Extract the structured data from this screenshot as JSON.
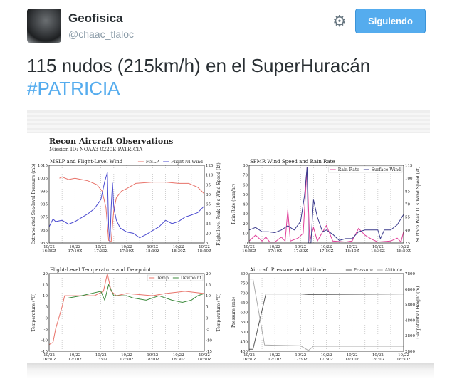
{
  "header": {
    "display_name": "Geofisica",
    "handle": "@chaac_tlaloc",
    "settings_icon": "gear-icon",
    "follow_button": "Siguiendo",
    "accent": "#55acee"
  },
  "tweet": {
    "text": "115 nudos (215km/h) en el SuperHuracán",
    "hashtag": "#PATRICIA"
  },
  "figure": {
    "title": "Recon Aircraft Observations",
    "subtitle": "Mission ID: NOAA3 0220E PATRICIA"
  },
  "chart_data": [
    {
      "type": "line",
      "title": "MSLP and Flight-Level Wind",
      "xlabel": "",
      "x_ticks": [
        "10/22\n16:50Z",
        "10/22\n17:10Z",
        "10/22\n17:30Z",
        "10/22\n17:50Z",
        "10/22\n18:10Z",
        "10/22\n18:30Z",
        "10/22\n18:50Z"
      ],
      "xlim": [
        "16:50",
        "18:50"
      ],
      "ylabel": "Extrapolated Sea-level Pressure (mb)",
      "ylim": [
        955,
        1015
      ],
      "y_ticks": [
        955,
        965,
        975,
        985,
        995,
        1005,
        1015
      ],
      "y2label": "Flight-level Peak 10 s Wind Speed (kt)",
      "y2lim": [
        5,
        125
      ],
      "y2_ticks": [
        5,
        20,
        35,
        50,
        65,
        80,
        95,
        110,
        125
      ],
      "legend": "top-right",
      "series": [
        {
          "name": "MSLP",
          "axis": "left",
          "color": "#e8736a",
          "points": [
            [
              "16:58",
              1005
            ],
            [
              "17:00",
              1006
            ],
            [
              "17:05",
              1004
            ],
            [
              "17:10",
              1005
            ],
            [
              "17:15",
              1004
            ],
            [
              "17:20",
              1003
            ],
            [
              "17:27",
              1000
            ],
            [
              "17:31",
              995
            ],
            [
              "17:34",
              982
            ],
            [
              "17:36",
              957
            ],
            [
              "17:38",
              956
            ],
            [
              "17:40",
              980
            ],
            [
              "17:42",
              990
            ],
            [
              "17:46",
              995
            ],
            [
              "17:50",
              997
            ],
            [
              "17:57",
              1001
            ],
            [
              "18:10",
              1002
            ],
            [
              "18:20",
              1002
            ],
            [
              "18:30",
              1001
            ],
            [
              "18:38",
              1001
            ],
            [
              "18:45",
              998
            ],
            [
              "18:50",
              993
            ]
          ]
        },
        {
          "name": "Flight lvl Wind",
          "axis": "right",
          "color": "#4a4ad0",
          "points": [
            [
              "16:50",
              30
            ],
            [
              "16:53",
              42
            ],
            [
              "16:55",
              38
            ],
            [
              "17:00",
              40
            ],
            [
              "17:05",
              34
            ],
            [
              "17:10",
              38
            ],
            [
              "17:15",
              44
            ],
            [
              "17:20",
              50
            ],
            [
              "17:25",
              58
            ],
            [
              "17:30",
              72
            ],
            [
              "17:33",
              100
            ],
            [
              "17:35",
              114
            ],
            [
              "17:36",
              30
            ],
            [
              "17:37",
              5
            ],
            [
              "17:38",
              60
            ],
            [
              "17:39",
              98
            ],
            [
              "17:40",
              60
            ],
            [
              "17:42",
              40
            ],
            [
              "17:45",
              28
            ],
            [
              "17:50",
              22
            ],
            [
              "17:55",
              20
            ],
            [
              "18:00",
              13
            ],
            [
              "18:05",
              18
            ],
            [
              "18:10",
              24
            ],
            [
              "18:15",
              30
            ],
            [
              "18:20",
              40
            ],
            [
              "18:25",
              35
            ],
            [
              "18:30",
              38
            ],
            [
              "18:35",
              45
            ],
            [
              "18:40",
              48
            ],
            [
              "18:45",
              52
            ],
            [
              "18:50",
              62
            ]
          ]
        }
      ]
    },
    {
      "type": "line",
      "title": "SFMR Wind Speed and Rain Rate",
      "x_ticks": [
        "10/22\n16:50Z",
        "10/22\n17:10Z",
        "10/22\n17:30Z",
        "10/22\n17:50Z",
        "10/22\n18:10Z",
        "10/22\n18:30Z",
        "10/22\n18:50Z"
      ],
      "xlim": [
        "16:50",
        "18:50"
      ],
      "ylabel": "Rain Rate (mm/hr)",
      "ylim": [
        0,
        80
      ],
      "y_ticks": [
        0,
        10,
        20,
        30,
        40,
        50,
        60,
        70,
        80
      ],
      "y2label": "Surface Peak 10 s Wind Speed (kt)",
      "y2lim": [
        25,
        115
      ],
      "y2_ticks": [
        25,
        40,
        55,
        70,
        85,
        100,
        115
      ],
      "legend": "top-right",
      "series": [
        {
          "name": "Rain Rate",
          "axis": "left",
          "color": "#e0409a",
          "points": [
            [
              "16:50",
              2
            ],
            [
              "16:55",
              8
            ],
            [
              "17:00",
              2
            ],
            [
              "17:03",
              6
            ],
            [
              "17:06",
              1
            ],
            [
              "17:10",
              1
            ],
            [
              "17:15",
              6
            ],
            [
              "17:18",
              2
            ],
            [
              "17:20",
              34
            ],
            [
              "17:22",
              2
            ],
            [
              "17:28",
              5
            ],
            [
              "17:32",
              10
            ],
            [
              "17:35",
              78
            ],
            [
              "17:37",
              2
            ],
            [
              "17:40",
              16
            ],
            [
              "17:43",
              2
            ],
            [
              "17:50",
              18
            ],
            [
              "17:55",
              2
            ],
            [
              "18:05",
              1
            ],
            [
              "18:10",
              2
            ],
            [
              "18:15",
              15
            ],
            [
              "18:20",
              8
            ],
            [
              "18:25",
              4
            ],
            [
              "18:30",
              1
            ],
            [
              "18:40",
              2
            ],
            [
              "18:45",
              5
            ],
            [
              "18:48",
              1
            ],
            [
              "18:50",
              12
            ]
          ]
        },
        {
          "name": "Surface Wind",
          "axis": "right",
          "color": "#3a3a8c",
          "points": [
            [
              "16:50",
              40
            ],
            [
              "16:55",
              43
            ],
            [
              "17:00",
              38
            ],
            [
              "17:05",
              38
            ],
            [
              "17:10",
              37
            ],
            [
              "17:15",
              40
            ],
            [
              "17:20",
              45
            ],
            [
              "17:25",
              40
            ],
            [
              "17:30",
              50
            ],
            [
              "17:33",
              80
            ],
            [
              "17:35",
              113
            ],
            [
              "17:36",
              25
            ],
            [
              "17:38",
              25
            ],
            [
              "17:40",
              75
            ],
            [
              "17:43",
              55
            ],
            [
              "17:47",
              38
            ],
            [
              "17:50",
              40
            ],
            [
              "17:55",
              35
            ],
            [
              "18:00",
              28
            ],
            [
              "18:05",
              30
            ],
            [
              "18:10",
              30
            ],
            [
              "18:15",
              38
            ],
            [
              "18:20",
              40
            ],
            [
              "18:30",
              40
            ],
            [
              "18:32",
              30
            ],
            [
              "18:35",
              40
            ],
            [
              "18:40",
              40
            ],
            [
              "18:45",
              46
            ],
            [
              "18:50",
              58
            ]
          ]
        }
      ]
    },
    {
      "type": "line",
      "title": "Flight-Level Temperature and Dewpoint",
      "x_ticks": [
        "10/22\n16:50Z",
        "10/22\n17:10Z",
        "10/22\n17:30Z",
        "10/22\n17:50Z",
        "10/22\n18:10Z",
        "10/22\n18:30Z",
        "10/22\n18:50Z"
      ],
      "xlim": [
        "16:50",
        "18:50"
      ],
      "ylabel": "Temperature (°C)",
      "ylim": [
        -15,
        20
      ],
      "y_ticks": [
        -15,
        -10,
        -5,
        0,
        5,
        10,
        15,
        20
      ],
      "y2label": "Temperature (°C)",
      "y2lim": [
        -15,
        20
      ],
      "y2_ticks": [
        -15,
        -10,
        -5,
        0,
        5,
        10,
        15,
        20
      ],
      "legend": "top-right",
      "series": [
        {
          "name": "Temp",
          "axis": "left",
          "color": "#e8736a",
          "points": [
            [
              "16:50",
              -12
            ],
            [
              "16:53",
              -11
            ],
            [
              "16:55",
              -5
            ],
            [
              "17:00",
              5
            ],
            [
              "17:02",
              10
            ],
            [
              "17:10",
              10
            ],
            [
              "17:20",
              10
            ],
            [
              "17:25",
              10
            ],
            [
              "17:32",
              12
            ],
            [
              "17:35",
              20
            ],
            [
              "17:38",
              12
            ],
            [
              "17:42",
              10
            ],
            [
              "17:50",
              11
            ],
            [
              "18:10",
              10
            ],
            [
              "18:20",
              11
            ],
            [
              "18:35",
              12
            ],
            [
              "18:50",
              11
            ]
          ]
        },
        {
          "name": "Dewpoint",
          "axis": "left",
          "color": "#3c8a3c",
          "points": [
            [
              "17:05",
              9
            ],
            [
              "17:15",
              10
            ],
            [
              "17:30",
              12
            ],
            [
              "17:33",
              8
            ],
            [
              "17:36",
              15
            ],
            [
              "17:40",
              10
            ],
            [
              "17:50",
              10
            ],
            [
              "17:55",
              9
            ],
            [
              "18:05",
              8
            ],
            [
              "18:15",
              10
            ],
            [
              "18:25",
              8
            ],
            [
              "18:33",
              7
            ],
            [
              "18:40",
              8
            ],
            [
              "18:45",
              10
            ],
            [
              "18:50",
              11
            ]
          ]
        }
      ]
    },
    {
      "type": "line",
      "title": "Aircraft Pressure and Altitude",
      "x_ticks": [
        "10/22\n16:50Z",
        "10/22\n17:10Z",
        "10/22\n17:30Z",
        "10/22\n17:50Z",
        "10/22\n18:10Z",
        "10/22\n18:30Z",
        "10/22\n18:50Z"
      ],
      "xlim": [
        "16:50",
        "18:50"
      ],
      "ylabel": "Pressure (mb)",
      "ylim": [
        400,
        800
      ],
      "y_ticks": [
        400,
        450,
        500,
        550,
        600,
        650,
        700,
        750,
        800
      ],
      "y2label": "Geopotential Height (m)",
      "y2lim": [
        2800,
        7800
      ],
      "y2_ticks": [
        2800,
        3800,
        4800,
        5800,
        6800,
        7800
      ],
      "legend": "top-right",
      "series": [
        {
          "name": "Pressure",
          "axis": "left",
          "color": "#555555",
          "points": [
            [
              "16:50",
              410
            ],
            [
              "16:53",
              410
            ],
            [
              "17:03",
              695
            ],
            [
              "17:30",
              695
            ],
            [
              "17:36",
              692
            ],
            [
              "18:50",
              695
            ]
          ]
        },
        {
          "name": "Altitude",
          "axis": "right",
          "color": "#aaaaaa",
          "points": [
            [
              "16:50",
              7450
            ],
            [
              "16:53",
              7450
            ],
            [
              "17:02",
              3200
            ],
            [
              "17:30",
              3150
            ],
            [
              "17:36",
              2850
            ],
            [
              "17:40",
              3120
            ],
            [
              "18:50",
              3120
            ]
          ]
        }
      ]
    }
  ]
}
